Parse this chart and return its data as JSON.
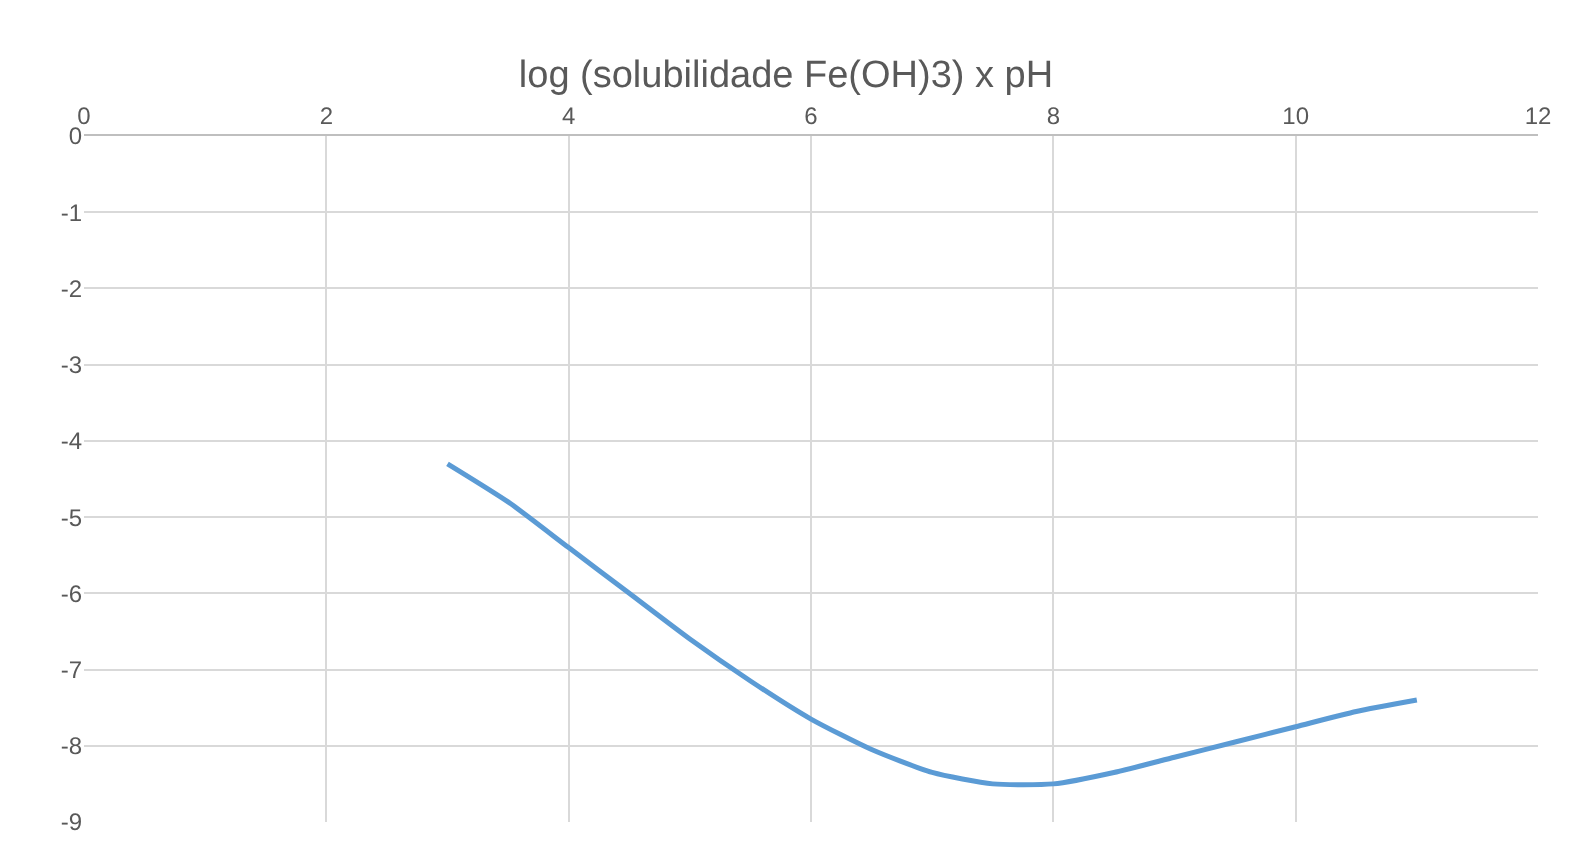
{
  "chart_data": {
    "type": "line",
    "title": "log (solubilidade Fe(OH)3) x pH",
    "x": [
      3,
      3.5,
      4,
      4.5,
      5,
      5.5,
      6,
      6.5,
      7,
      7.5,
      8,
      8.5,
      9,
      9.5,
      10,
      10.5,
      11
    ],
    "series": [
      {
        "color": "#5b9bd5",
        "values": [
          -4.3,
          -4.8,
          -5.4,
          -6.0,
          -6.6,
          -7.15,
          -7.65,
          -8.05,
          -8.35,
          -8.5,
          -8.5,
          -8.35,
          -8.15,
          -7.95,
          -7.75,
          -7.55,
          -7.4
        ]
      }
    ],
    "xlim": [
      0,
      12
    ],
    "xticks": [
      0,
      2,
      4,
      6,
      8,
      10,
      12
    ],
    "ylim": [
      -9,
      0
    ],
    "yticks": [
      0,
      -1,
      -2,
      -3,
      -4,
      -5,
      -6,
      -7,
      -8,
      -9
    ],
    "grid": true,
    "marker": "none",
    "line_style": "solid"
  }
}
